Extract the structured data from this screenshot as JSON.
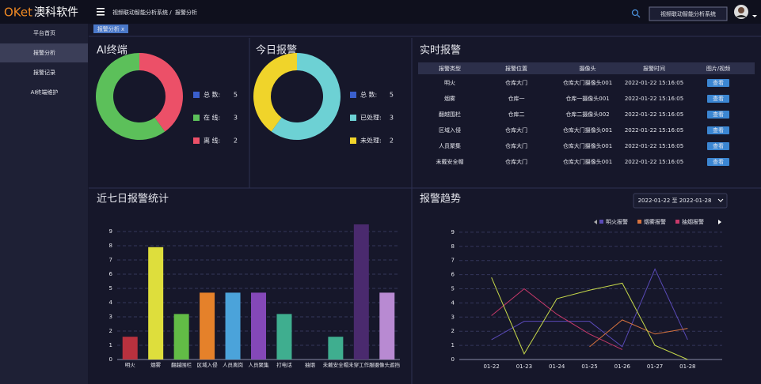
{
  "header": {
    "logo_brand": "OKet",
    "logo_name": "澳科软件",
    "breadcrumb": [
      "视频联动智能分析系统 /",
      "报警分析"
    ],
    "system_button": "视频联动智能分析系统"
  },
  "sidebar": {
    "items": [
      "平台首页",
      "报警分析",
      "报警记录",
      "AI终端维护"
    ],
    "active": 1
  },
  "tabs": [
    "报警分析 x"
  ],
  "table": {
    "title": "实时报警",
    "columns": [
      "报警类型",
      "报警位置",
      "摄像头",
      "报警时间",
      "图片/视频"
    ],
    "rows": [
      [
        "明火",
        "仓库大门",
        "仓库大门摄像头001",
        "2022-01-22 15:16:05",
        "查看"
      ],
      [
        "烟雾",
        "仓库一",
        "仓库一摄像头001",
        "2022-01-22 15:16:05",
        "查看"
      ],
      [
        "翻越围栏",
        "仓库二",
        "仓库二摄像头002",
        "2022-01-22 15:16:05",
        "查看"
      ],
      [
        "区域入侵",
        "仓库大门",
        "仓库大门摄像头001",
        "2022-01-22 15:16:05",
        "查看"
      ],
      [
        "人员聚集",
        "仓库大门",
        "仓库大门摄像头001",
        "2022-01-22 15:16:05",
        "查看"
      ],
      [
        "未戴安全帽",
        "仓库大门",
        "仓库大门摄像头001",
        "2022-01-22 15:16:05",
        "查看"
      ]
    ]
  },
  "chart_data": [
    {
      "type": "pie",
      "donut": true,
      "clockwise": false,
      "title": "AI终端",
      "total": {
        "name": "总 数:",
        "value": 5,
        "color": "#3a5fcd"
      },
      "categories": [
        "在 线:",
        "离 线:"
      ],
      "values": [
        3,
        2
      ],
      "colors": [
        "#5cc05a",
        "#ec5068"
      ]
    },
    {
      "type": "pie",
      "donut": true,
      "clockwise": true,
      "title": "今日报警",
      "total": {
        "name": "总 数:",
        "value": 5,
        "color": "#3a5fcd"
      },
      "categories": [
        "已处理:",
        "未处理:"
      ],
      "values": [
        3,
        2
      ],
      "colors": [
        "#6dd1d4",
        "#f0d42a"
      ]
    },
    {
      "type": "bar",
      "title": "近七日报警统计",
      "categories": [
        "明火",
        "烟雾",
        "翻越围栏",
        "区域入侵",
        "人员离岗",
        "人员聚集",
        "打电话",
        "抽烟",
        "未戴安全帽",
        "未穿工作服",
        "摄像头遮挡"
      ],
      "values": [
        1.6,
        7.9,
        3.2,
        4.7,
        4.7,
        4.7,
        3.2,
        0,
        1.6,
        9.5,
        4.7
      ],
      "colors": [
        "#b8313e",
        "#dede3c",
        "#62bc46",
        "#e5812a",
        "#4ba3da",
        "#8448b8",
        "#3fae8f",
        "#3fae8f",
        "#3fae8f",
        "#4a2a6e",
        "#b88ad2"
      ],
      "ylim": [
        0,
        9.6
      ],
      "yticks": [
        0,
        1,
        2,
        3,
        4,
        5,
        6,
        7,
        8,
        9
      ],
      "grid": true
    },
    {
      "type": "line",
      "title": "报警趋势",
      "date_range": "2022-01-22  至  2022-01-28",
      "categories": [
        "01-22",
        "01-23",
        "01-24",
        "01-25",
        "01-26",
        "01-27",
        "01-28"
      ],
      "series": [
        {
          "name": "明火报警",
          "color": "#5a4ab8",
          "values": [
            1.4,
            2.7,
            2.7,
            2.7,
            0.9,
            6.4,
            1.4
          ]
        },
        {
          "name": "烟雾报警",
          "color": "#d8733e",
          "values": [
            null,
            null,
            null,
            0.9,
            2.8,
            1.8,
            2.2
          ]
        },
        {
          "name": "抽烟报警",
          "color": "#c8396a",
          "values": [
            3.1,
            5.0,
            3.2,
            1.8,
            0.7,
            null,
            null
          ]
        },
        {
          "color": "#c6d84a",
          "values": [
            5.8,
            0.4,
            4.3,
            4.9,
            5.4,
            1.0,
            0
          ]
        }
      ],
      "ylim": [
        0,
        9.3
      ],
      "yticks": [
        0,
        1,
        2,
        3,
        4,
        5,
        6,
        7,
        8,
        9
      ],
      "grid": true
    }
  ]
}
